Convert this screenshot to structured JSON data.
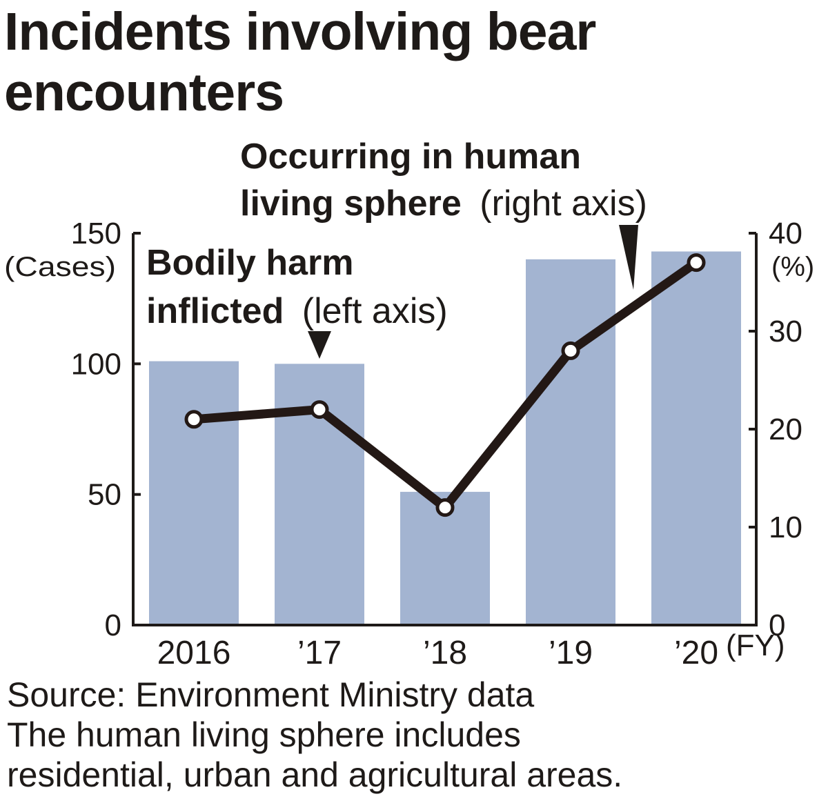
{
  "title_line1": "Incidents involving bear",
  "title_line2": "encounters",
  "chart_data": {
    "type": "bar",
    "categories": [
      "2016",
      "’17",
      "’18",
      "’19",
      "’20"
    ],
    "x_unit": "(FY)",
    "bars": {
      "label_bold_1": "Bodily harm",
      "label_bold_2": "inflicted",
      "label_axis": "(left axis)",
      "values": [
        101,
        100,
        51,
        140,
        143
      ],
      "axis": "left",
      "color": "#a3b4d1"
    },
    "line": {
      "label_bold_1": "Occurring in human",
      "label_bold_2": "living sphere",
      "label_axis": "(right axis)",
      "values": [
        21,
        22,
        12,
        28,
        37
      ],
      "axis": "right",
      "color": "#231815"
    },
    "left_axis": {
      "unit": "(Cases)",
      "ylim": [
        0,
        150
      ],
      "ticks": [
        "0",
        "50",
        "100",
        "150"
      ]
    },
    "right_axis": {
      "unit": "(%)",
      "ylim": [
        0,
        40
      ],
      "ticks": [
        "0",
        "10",
        "20",
        "30",
        "40"
      ]
    },
    "grid": false
  },
  "source": "Source: Environment Ministry data",
  "note_line1": "The human living sphere includes",
  "note_line2": "residential, urban and agricultural areas."
}
